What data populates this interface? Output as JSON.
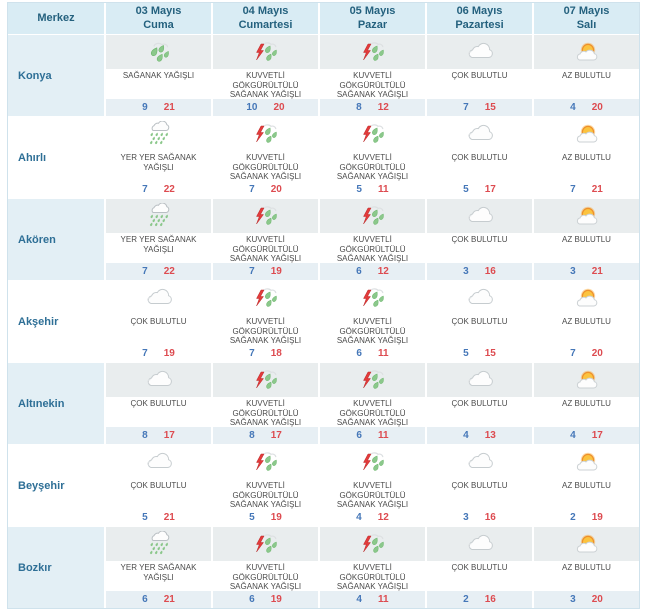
{
  "table": {
    "header": {
      "merkez_label": "Merkez",
      "days": [
        {
          "date": "03 Mayıs",
          "day": "Cuma"
        },
        {
          "date": "04 Mayıs",
          "day": "Cumartesi"
        },
        {
          "date": "05 Mayıs",
          "day": "Pazar"
        },
        {
          "date": "06 Mayıs",
          "day": "Pazartesi"
        },
        {
          "date": "07 Mayıs",
          "day": "Salı"
        }
      ]
    },
    "rows": [
      {
        "city": "Konya",
        "cells": [
          {
            "icon": "showers-icon",
            "desc": "SAĞANAK YAĞIŞLI",
            "min": "9",
            "max": "21"
          },
          {
            "icon": "thunderstorm-icon",
            "desc": "KUVVETLİ GÖKGÜRÜLTÜLÜ SAĞANAK YAĞIŞLI",
            "min": "10",
            "max": "20"
          },
          {
            "icon": "thunderstorm-icon",
            "desc": "KUVVETLİ GÖKGÜRÜLTÜLÜ SAĞANAK YAĞIŞLI",
            "min": "8",
            "max": "12"
          },
          {
            "icon": "mostly-cloudy-icon",
            "desc": "ÇOK BULUTLU",
            "min": "7",
            "max": "15"
          },
          {
            "icon": "partly-cloudy-icon",
            "desc": "AZ BULUTLU",
            "min": "4",
            "max": "20"
          }
        ]
      },
      {
        "city": "Ahırlı",
        "cells": [
          {
            "icon": "scattered-showers-icon",
            "desc": "YER YER SAĞANAK YAĞIŞLI",
            "min": "7",
            "max": "22"
          },
          {
            "icon": "thunderstorm-icon",
            "desc": "KUVVETLİ GÖKGÜRÜLTÜLÜ SAĞANAK YAĞIŞLI",
            "min": "7",
            "max": "20"
          },
          {
            "icon": "thunderstorm-icon",
            "desc": "KUVVETLİ GÖKGÜRÜLTÜLÜ SAĞANAK YAĞIŞLI",
            "min": "5",
            "max": "11"
          },
          {
            "icon": "mostly-cloudy-icon",
            "desc": "ÇOK BULUTLU",
            "min": "5",
            "max": "17"
          },
          {
            "icon": "partly-cloudy-icon",
            "desc": "AZ BULUTLU",
            "min": "7",
            "max": "21"
          }
        ]
      },
      {
        "city": "Akören",
        "cells": [
          {
            "icon": "scattered-showers-icon",
            "desc": "YER YER SAĞANAK YAĞIŞLI",
            "min": "7",
            "max": "22"
          },
          {
            "icon": "thunderstorm-icon",
            "desc": "KUVVETLİ GÖKGÜRÜLTÜLÜ SAĞANAK YAĞIŞLI",
            "min": "7",
            "max": "19"
          },
          {
            "icon": "thunderstorm-icon",
            "desc": "KUVVETLİ GÖKGÜRÜLTÜLÜ SAĞANAK YAĞIŞLI",
            "min": "6",
            "max": "12"
          },
          {
            "icon": "mostly-cloudy-icon",
            "desc": "ÇOK BULUTLU",
            "min": "3",
            "max": "16"
          },
          {
            "icon": "partly-cloudy-icon",
            "desc": "AZ BULUTLU",
            "min": "3",
            "max": "21"
          }
        ]
      },
      {
        "city": "Akşehir",
        "cells": [
          {
            "icon": "mostly-cloudy-icon",
            "desc": "ÇOK BULUTLU",
            "min": "7",
            "max": "19"
          },
          {
            "icon": "thunderstorm-icon",
            "desc": "KUVVETLİ GÖKGÜRÜLTÜLÜ SAĞANAK YAĞIŞLI",
            "min": "7",
            "max": "18"
          },
          {
            "icon": "thunderstorm-icon",
            "desc": "KUVVETLİ GÖKGÜRÜLTÜLÜ SAĞANAK YAĞIŞLI",
            "min": "6",
            "max": "11"
          },
          {
            "icon": "mostly-cloudy-icon",
            "desc": "ÇOK BULUTLU",
            "min": "5",
            "max": "15"
          },
          {
            "icon": "partly-cloudy-icon",
            "desc": "AZ BULUTLU",
            "min": "7",
            "max": "20"
          }
        ]
      },
      {
        "city": "Altınekin",
        "cells": [
          {
            "icon": "mostly-cloudy-icon",
            "desc": "ÇOK BULUTLU",
            "min": "8",
            "max": "17"
          },
          {
            "icon": "thunderstorm-icon",
            "desc": "KUVVETLİ GÖKGÜRÜLTÜLÜ SAĞANAK YAĞIŞLI",
            "min": "8",
            "max": "17"
          },
          {
            "icon": "thunderstorm-icon",
            "desc": "KUVVETLİ GÖKGÜRÜLTÜLÜ SAĞANAK YAĞIŞLI",
            "min": "6",
            "max": "11"
          },
          {
            "icon": "mostly-cloudy-icon",
            "desc": "ÇOK BULUTLU",
            "min": "4",
            "max": "13"
          },
          {
            "icon": "partly-cloudy-icon",
            "desc": "AZ BULUTLU",
            "min": "4",
            "max": "17"
          }
        ]
      },
      {
        "city": "Beyşehir",
        "cells": [
          {
            "icon": "mostly-cloudy-icon",
            "desc": "ÇOK BULUTLU",
            "min": "5",
            "max": "21"
          },
          {
            "icon": "thunderstorm-icon",
            "desc": "KUVVETLİ GÖKGÜRÜLTÜLÜ SAĞANAK YAĞIŞLI",
            "min": "5",
            "max": "19"
          },
          {
            "icon": "thunderstorm-icon",
            "desc": "KUVVETLİ GÖKGÜRÜLTÜLÜ SAĞANAK YAĞIŞLI",
            "min": "4",
            "max": "12"
          },
          {
            "icon": "mostly-cloudy-icon",
            "desc": "ÇOK BULUTLU",
            "min": "3",
            "max": "16"
          },
          {
            "icon": "partly-cloudy-icon",
            "desc": "AZ BULUTLU",
            "min": "2",
            "max": "19"
          }
        ]
      },
      {
        "city": "Bozkır",
        "cells": [
          {
            "icon": "scattered-showers-icon",
            "desc": "YER YER SAĞANAK YAĞIŞLI",
            "min": "6",
            "max": "21"
          },
          {
            "icon": "thunderstorm-icon",
            "desc": "KUVVETLİ GÖKGÜRÜLTÜLÜ SAĞANAK YAĞIŞLI",
            "min": "6",
            "max": "19"
          },
          {
            "icon": "thunderstorm-icon",
            "desc": "KUVVETLİ GÖKGÜRÜLTÜLÜ SAĞANAK YAĞIŞLI",
            "min": "4",
            "max": "11"
          },
          {
            "icon": "mostly-cloudy-icon",
            "desc": "ÇOK BULUTLU",
            "min": "2",
            "max": "16"
          },
          {
            "icon": "partly-cloudy-icon",
            "desc": "AZ BULUTLU",
            "min": "3",
            "max": "20"
          }
        ]
      }
    ]
  },
  "colors": {
    "header_bg": "#d9ecf4",
    "header_text": "#24617e",
    "city_text": "#2e6f96",
    "row_tint_city": "#e3eff5",
    "row_tint_icon": "#e9edee",
    "row_tint_temp": "#e7eff4",
    "min_temp": "#4577b8",
    "max_temp": "#dd4b50",
    "desc_text": "#4b4b4b",
    "rain_green": "#8bc88b",
    "bolt_red": "#e33b3b",
    "sun_orange": "#fbc33f"
  }
}
